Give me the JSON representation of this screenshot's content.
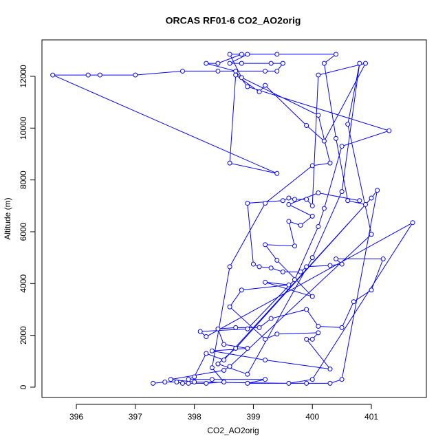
{
  "chart_data": {
    "type": "line",
    "title": "ORCAS RF01-6 CO2_AO2orig",
    "x_label": "CO2_AO2orig",
    "y_label": "Altitude (m)",
    "color": "#0000ff",
    "markers": true,
    "x": [
      397.3,
      397.5,
      397.7,
      397.8,
      397.9,
      398.2,
      398.5,
      398.3,
      398.6,
      399.2,
      400.0,
      400.3,
      400.1,
      398.8,
      398.6,
      399.4,
      400.4,
      400.2,
      400.4,
      400.6,
      400.9,
      398.5,
      398.2,
      398.0,
      397.9,
      398.3,
      399.2,
      398.9,
      399.9,
      400.3,
      400.5,
      401.1,
      401.0,
      398.7,
      398.4,
      398.9,
      400.0,
      400.5,
      400.8,
      400.6,
      401.0,
      398.6,
      398.5,
      397.6,
      398.0,
      399.6,
      400.0,
      401.7,
      398.2,
      398.1,
      398.9,
      399.7,
      400.1,
      400.2,
      400.5,
      401.3,
      398.9,
      398.7,
      398.2,
      398.4,
      398.8,
      398.9,
      398.6,
      398.8,
      399.3,
      399.5,
      399.4,
      399.2,
      398.4,
      397.8,
      397.0,
      396.4,
      396.2,
      395.6,
      399.4,
      398.6,
      398.7,
      399.1,
      399.2,
      399.9,
      400.2,
      400.9,
      400.1,
      400.0,
      399.9,
      399.7,
      399.6,
      399.5,
      398.9,
      399.0,
      399.1,
      399.3,
      399.5,
      399.8,
      399.9,
      400.3,
      400.5,
      400.4,
      401.2,
      401.0,
      400.7,
      400.5,
      400.1,
      399.9,
      399.3,
      399.1,
      398.7,
      398.4,
      398.5,
      398.9,
      398.3,
      399.2,
      400.3,
      399.9,
      400.0,
      400.1,
      399.4,
      399.2,
      398.6,
      398.8,
      399.6,
      399.2,
      400.0,
      399.4,
      399.2,
      399.7,
      399.6,
      399.8,
      400.0,
      399.6,
      400.1,
      400.8
    ],
    "values": [
      150,
      200,
      200,
      150,
      150,
      150,
      200,
      750,
      4650,
      7100,
      8550,
      8650,
      10500,
      11950,
      12850,
      12850,
      12850,
      12500,
      9600,
      7200,
      7050,
      1050,
      1300,
      400,
      300,
      300,
      300,
      150,
      150,
      150,
      300,
      7600,
      7300,
      1500,
      900,
      500,
      5000,
      7550,
      12500,
      10150,
      5900,
      800,
      650,
      300,
      200,
      150,
      300,
      6350,
      1950,
      2150,
      2250,
      4150,
      6200,
      6900,
      9300,
      9900,
      11600,
      12200,
      12500,
      12500,
      12850,
      12850,
      12500,
      12500,
      12500,
      12500,
      12200,
      12200,
      12200,
      12200,
      12050,
      12050,
      12050,
      12050,
      8250,
      8650,
      12050,
      11400,
      11650,
      10100,
      9500,
      12500,
      12050,
      7000,
      7250,
      7250,
      7300,
      7200,
      7100,
      4750,
      4650,
      4600,
      4450,
      4450,
      4650,
      4700,
      4750,
      4950,
      4950,
      3750,
      3300,
      2300,
      2350,
      3000,
      2650,
      2300,
      2300,
      2250,
      1650,
      1500,
      1400,
      1050,
      700,
      1850,
      1850,
      2100,
      2050,
      1850,
      3100,
      3750,
      3950,
      4050,
      3500,
      4900,
      5500,
      5450,
      6400,
      6250,
      6600,
      7050,
      7500,
      7200
    ],
    "xlim": [
      395.417,
      401.932
    ],
    "ylim": [
      -398,
      13406
    ],
    "xticks": [
      396,
      397,
      398,
      399,
      400,
      401
    ],
    "yticks": [
      0,
      2000,
      4000,
      6000,
      8000,
      10000,
      12000
    ]
  }
}
